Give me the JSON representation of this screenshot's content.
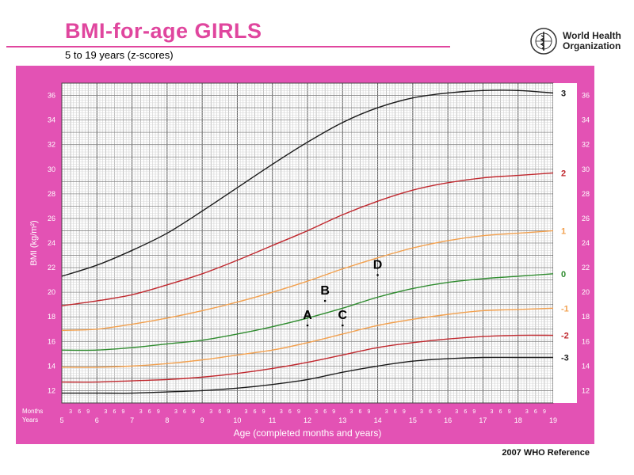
{
  "header": {
    "title": "BMI-for-age  GIRLS",
    "subtitle": "5 to 19 years (z-scores)",
    "org_line1": "World Health",
    "org_line2": "Organization"
  },
  "footer": {
    "reference": "2007 WHO Reference"
  },
  "chart_data": {
    "type": "line",
    "xlabel": "Age (completed months and years)",
    "ylabel": "BMI (kg/m²)",
    "xlim": [
      5,
      19
    ],
    "ylim": [
      11,
      37
    ],
    "x_ticks_years": [
      "5",
      "6",
      "7",
      "8",
      "9",
      "10",
      "11",
      "12",
      "13",
      "14",
      "15",
      "16",
      "17",
      "18",
      "19"
    ],
    "x_ticks_months": [
      "3",
      "6",
      "9"
    ],
    "row_labels": {
      "months": "Months",
      "years": "Years"
    },
    "y_ticks": [
      "12",
      "14",
      "16",
      "18",
      "20",
      "22",
      "24",
      "26",
      "28",
      "30",
      "32",
      "34",
      "36"
    ],
    "grid": true,
    "series": [
      {
        "name": "3",
        "color": "#1a1a1a",
        "x": [
          5,
          6,
          7,
          8,
          9,
          10,
          11,
          12,
          13,
          14,
          15,
          16,
          17,
          18,
          19
        ],
        "y": [
          21.3,
          22.2,
          23.4,
          24.8,
          26.6,
          28.5,
          30.4,
          32.2,
          33.8,
          35.0,
          35.8,
          36.2,
          36.4,
          36.4,
          36.2
        ]
      },
      {
        "name": "2",
        "color": "#c0282e",
        "x": [
          5,
          6,
          7,
          8,
          9,
          10,
          11,
          12,
          13,
          14,
          15,
          16,
          17,
          18,
          19
        ],
        "y": [
          18.9,
          19.3,
          19.8,
          20.6,
          21.5,
          22.6,
          23.8,
          25.0,
          26.3,
          27.4,
          28.3,
          28.9,
          29.3,
          29.5,
          29.7
        ]
      },
      {
        "name": "1",
        "color": "#f2a04e",
        "x": [
          5,
          6,
          7,
          8,
          9,
          10,
          11,
          12,
          13,
          14,
          15,
          16,
          17,
          18,
          19
        ],
        "y": [
          16.9,
          17.0,
          17.4,
          17.9,
          18.5,
          19.2,
          20.0,
          20.9,
          21.9,
          22.8,
          23.6,
          24.2,
          24.6,
          24.8,
          25.0
        ]
      },
      {
        "name": "0",
        "color": "#2e8b2e",
        "x": [
          5,
          6,
          7,
          8,
          9,
          10,
          11,
          12,
          13,
          14,
          15,
          16,
          17,
          18,
          19
        ],
        "y": [
          15.3,
          15.3,
          15.5,
          15.8,
          16.1,
          16.6,
          17.2,
          17.9,
          18.7,
          19.6,
          20.3,
          20.8,
          21.1,
          21.3,
          21.5
        ]
      },
      {
        "name": "-1",
        "color": "#f2a04e",
        "x": [
          5,
          6,
          7,
          8,
          9,
          10,
          11,
          12,
          13,
          14,
          15,
          16,
          17,
          18,
          19
        ],
        "y": [
          13.9,
          13.9,
          14.0,
          14.2,
          14.5,
          14.9,
          15.3,
          15.9,
          16.6,
          17.3,
          17.8,
          18.2,
          18.5,
          18.6,
          18.7
        ]
      },
      {
        "name": "-2",
        "color": "#c0282e",
        "x": [
          5,
          6,
          7,
          8,
          9,
          10,
          11,
          12,
          13,
          14,
          15,
          16,
          17,
          18,
          19
        ],
        "y": [
          12.7,
          12.7,
          12.8,
          12.9,
          13.1,
          13.4,
          13.8,
          14.3,
          14.9,
          15.5,
          15.9,
          16.2,
          16.4,
          16.5,
          16.5
        ]
      },
      {
        "name": "-3",
        "color": "#1a1a1a",
        "x": [
          5,
          6,
          7,
          8,
          9,
          10,
          11,
          12,
          13,
          14,
          15,
          16,
          17,
          18,
          19
        ],
        "y": [
          11.8,
          11.8,
          11.8,
          11.9,
          12.0,
          12.2,
          12.5,
          12.9,
          13.5,
          14.0,
          14.4,
          14.6,
          14.7,
          14.7,
          14.7
        ]
      }
    ],
    "annotations": [
      {
        "label": "A",
        "x": 12.0,
        "y": 17.3
      },
      {
        "label": "B",
        "x": 12.5,
        "y": 19.3
      },
      {
        "label": "C",
        "x": 13.0,
        "y": 17.3
      },
      {
        "label": "D",
        "x": 14.0,
        "y": 21.4
      }
    ]
  }
}
